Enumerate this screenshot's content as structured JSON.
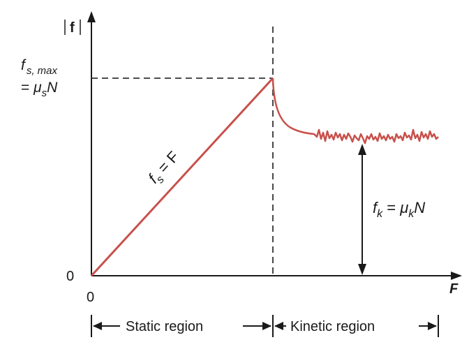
{
  "colors": {
    "curve": "#c8504b",
    "axis": "#1a1a1a",
    "dashed": "#333333"
  },
  "axes": {
    "y_label": "f",
    "x_label": "F",
    "x_origin_label": "0",
    "y_origin_label": "0"
  },
  "labels": {
    "fs_max_sym": "f",
    "fs_max_sub": "s, max",
    "fs_max_eq_prefix": "= ",
    "fs_max_mu": "μ",
    "fs_max_mu_sub": "s",
    "fs_max_N": "N",
    "static_line_f": "f",
    "static_line_sub": "s",
    "static_line_rest": " = F",
    "kinetic_f": "f",
    "kinetic_f_sub": "k",
    "kinetic_eq": " = ",
    "kinetic_mu": "μ",
    "kinetic_mu_sub": "k",
    "kinetic_N": "N"
  },
  "regions": {
    "static": "Static region",
    "kinetic": "Kinetic region"
  }
}
